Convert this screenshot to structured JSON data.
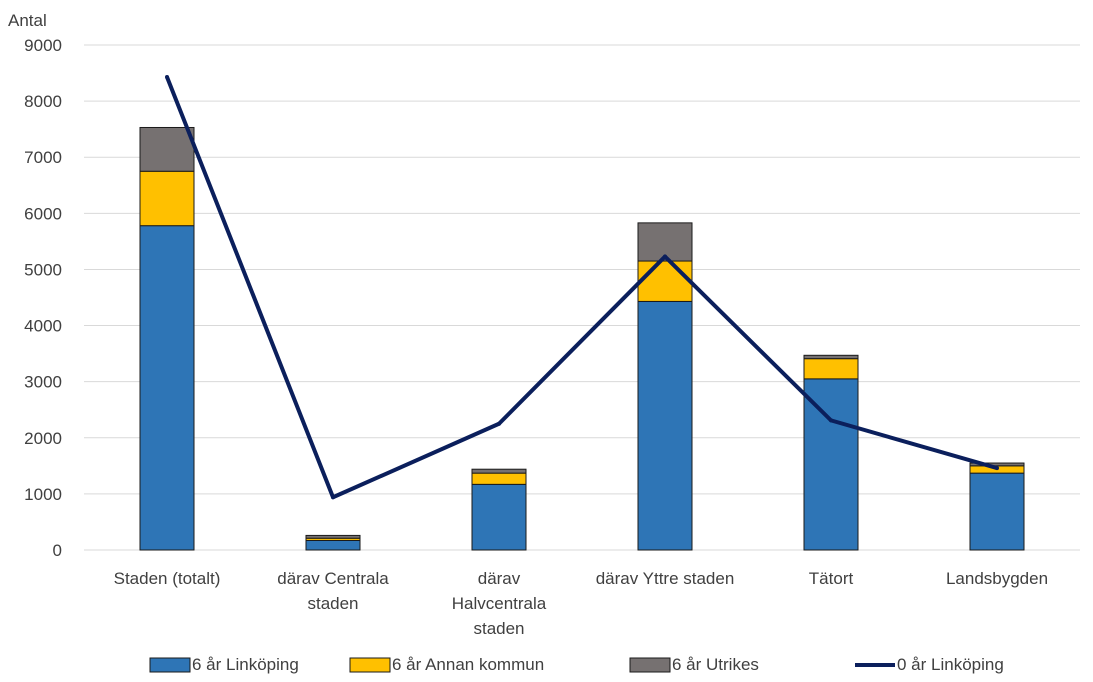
{
  "chart_data": {
    "type": "bar",
    "stacked": true,
    "ylabel": "Antal",
    "ylim": [
      0,
      9000
    ],
    "yticks": [
      0,
      1000,
      2000,
      3000,
      4000,
      5000,
      6000,
      7000,
      8000,
      9000
    ],
    "grid": true,
    "legend_position": "bottom",
    "categories": [
      [
        "Staden (totalt)"
      ],
      [
        "därav Centrala",
        "staden"
      ],
      [
        "därav",
        "Halvcentrala",
        "staden"
      ],
      [
        "därav Yttre staden"
      ],
      [
        "Tätort"
      ],
      [
        "Landsbygden"
      ]
    ],
    "series": [
      {
        "name": "6 år Linköping",
        "kind": "bar",
        "color": "#2e75b6",
        "values": [
          5780,
          170,
          1170,
          4430,
          3050,
          1370
        ]
      },
      {
        "name": "6 år Annan kommun",
        "kind": "bar",
        "color": "#ffc000",
        "values": [
          970,
          40,
          200,
          720,
          360,
          130
        ]
      },
      {
        "name": "6 år Utrikes",
        "kind": "bar",
        "color": "#767171",
        "values": [
          780,
          50,
          70,
          680,
          60,
          50
        ]
      },
      {
        "name": "0 år Linköping",
        "kind": "line",
        "color": "#0b1f5c",
        "values": [
          8430,
          940,
          2250,
          5230,
          2310,
          1460
        ]
      }
    ]
  }
}
